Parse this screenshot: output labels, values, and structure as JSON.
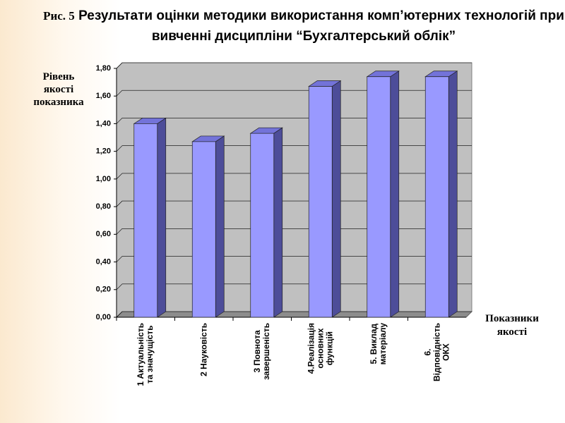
{
  "chart_data": {
    "type": "bar",
    "figure_label": "Рис. 5",
    "title": "Результати оцінки методики  використання комп’ютерних технологій при вивченні дисципліни “Бухгалтерський облік”",
    "y_label": "Рівень\nякості\nпоказника",
    "x_label": "Показники\nякості",
    "categories": [
      "1 Актуальність\nта значущість",
      "2 Науковість",
      "3 Повнота\nзавершеність",
      "4.Реалізація\nосновних\nфункцій",
      "5. Виклад\nматеріалу",
      "6.\nВідповідність\nОКХ"
    ],
    "values": [
      1.4,
      1.27,
      1.33,
      1.67,
      1.74,
      1.74
    ],
    "color": "#9999ff",
    "ylim": [
      0,
      1.8
    ],
    "yticks": [
      {
        "value": 0,
        "label": "0,00"
      },
      {
        "value": 0.2,
        "label": "0,20"
      },
      {
        "value": 0.4,
        "label": "0,40"
      },
      {
        "value": 0.6,
        "label": "0,60"
      },
      {
        "value": 0.8,
        "label": "0,80"
      },
      {
        "value": 1.0,
        "label": "1,00"
      },
      {
        "value": 1.2,
        "label": "1,20"
      },
      {
        "value": 1.4,
        "label": "1,40"
      },
      {
        "value": 1.6,
        "label": "1,60"
      },
      {
        "value": 1.8,
        "label": "1,80"
      }
    ],
    "grid": true
  }
}
